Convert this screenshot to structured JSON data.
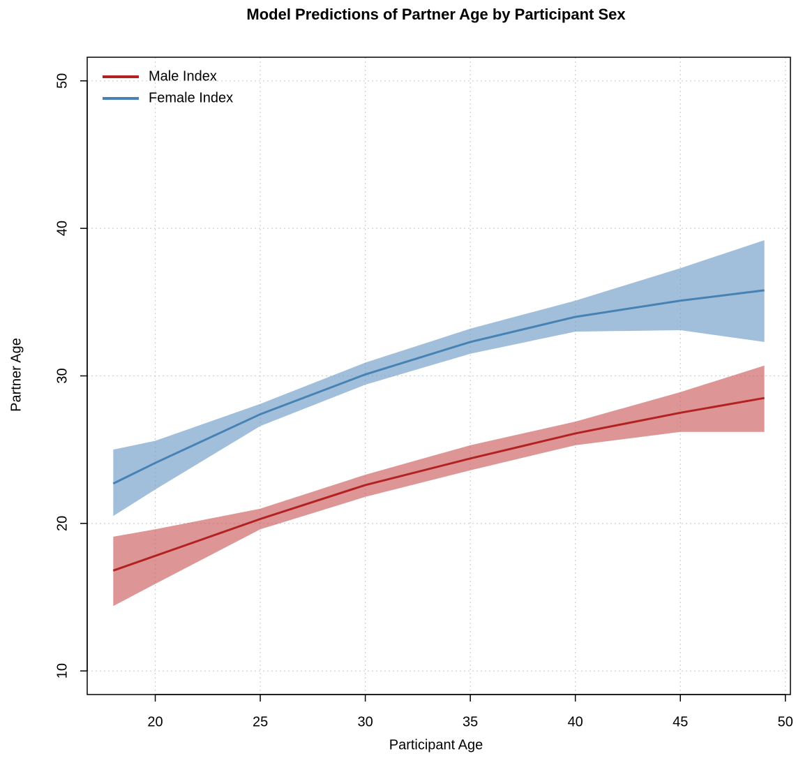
{
  "chart_data": {
    "type": "line",
    "title": "Model Predictions of Partner Age by Participant Sex",
    "x_label": "Participant Age",
    "y_label": "Partner Age",
    "x": [
      18,
      20,
      25,
      30,
      35,
      40,
      45,
      49
    ],
    "series": [
      {
        "name": "Male Index",
        "color": "#b22222",
        "band_color": "#cd5c5c",
        "values": [
          16.8,
          17.8,
          20.3,
          22.6,
          24.4,
          26.1,
          27.5,
          28.5
        ],
        "lower": [
          14.4,
          15.9,
          19.6,
          21.8,
          23.6,
          25.3,
          26.2,
          26.2
        ],
        "upper": [
          19.1,
          19.6,
          21.0,
          23.3,
          25.3,
          26.9,
          28.9,
          30.7
        ]
      },
      {
        "name": "Female Index",
        "color": "#4682b4",
        "band_color": "#6f9bc8",
        "values": [
          22.7,
          24.1,
          27.4,
          30.1,
          32.3,
          34.0,
          35.1,
          35.8
        ],
        "lower": [
          20.5,
          22.3,
          26.6,
          29.4,
          31.5,
          33.0,
          33.1,
          32.3
        ],
        "upper": [
          25.0,
          25.6,
          28.1,
          30.9,
          33.2,
          35.1,
          37.3,
          39.2
        ]
      }
    ],
    "xlim": [
      16.76,
      50.24
    ],
    "ylim": [
      8.4,
      51.6
    ],
    "xticks": [
      20,
      25,
      30,
      35,
      40,
      45,
      50
    ],
    "yticks": [
      10,
      20,
      30,
      40,
      50
    ],
    "grid": true,
    "legend": "top-left"
  }
}
